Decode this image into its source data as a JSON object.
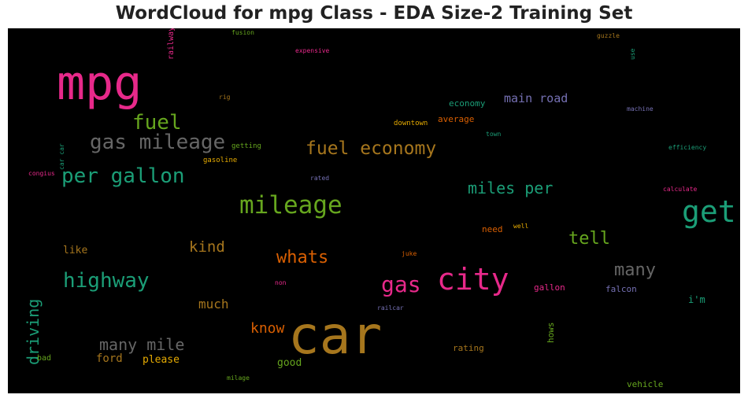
{
  "chart_data": {
    "type": "wordcloud",
    "title": "WordCloud for mpg Class - EDA Size-2 Training Set",
    "background": "#000000",
    "palette": [
      "#e7298a",
      "#1b9e77",
      "#66a61e",
      "#e6ab02",
      "#a6761d",
      "#d95f02",
      "#7570b3",
      "#666666"
    ],
    "words": [
      {
        "text": "mpg",
        "size": 60,
        "color": "#e7298a"
      },
      {
        "text": "car",
        "size": 66,
        "color": "#a6761d"
      },
      {
        "text": "get",
        "size": 38,
        "color": "#1b9e77"
      },
      {
        "text": "city",
        "size": 38,
        "color": "#e7298a"
      },
      {
        "text": "mileage",
        "size": 31,
        "color": "#66a61e"
      },
      {
        "text": "gas mileage",
        "size": 26,
        "color": "#666666"
      },
      {
        "text": "per gallon",
        "size": 26,
        "color": "#1b9e77"
      },
      {
        "text": "highway",
        "size": 26,
        "color": "#1b9e77"
      },
      {
        "text": "gas",
        "size": 28,
        "color": "#e7298a"
      },
      {
        "text": "fuel",
        "size": 26,
        "color": "#66a61e"
      },
      {
        "text": "fuel economy",
        "size": 23,
        "color": "#a6761d"
      },
      {
        "text": "whats",
        "size": 22,
        "color": "#d95f02"
      },
      {
        "text": "miles per",
        "size": 20,
        "color": "#1b9e77"
      },
      {
        "text": "tell",
        "size": 22,
        "color": "#66a61e"
      },
      {
        "text": "many",
        "size": 22,
        "color": "#666666"
      },
      {
        "text": "many mile",
        "size": 20,
        "color": "#666666"
      },
      {
        "text": "driving",
        "size": 20,
        "color": "#1b9e77",
        "rotate": -90
      },
      {
        "text": "kind",
        "size": 19,
        "color": "#a6761d"
      },
      {
        "text": "know",
        "size": 18,
        "color": "#d95f02"
      },
      {
        "text": "much",
        "size": 16,
        "color": "#a6761d"
      },
      {
        "text": "main road",
        "size": 15,
        "color": "#7570b3"
      },
      {
        "text": "ford",
        "size": 14,
        "color": "#a6761d"
      },
      {
        "text": "please",
        "size": 13,
        "color": "#e6ab02"
      },
      {
        "text": "good",
        "size": 13,
        "color": "#66a61e"
      },
      {
        "text": "like",
        "size": 13,
        "color": "#a6761d"
      },
      {
        "text": "i'm",
        "size": 12,
        "color": "#1b9e77"
      },
      {
        "text": "economy",
        "size": 11,
        "color": "#1b9e77"
      },
      {
        "text": "average",
        "size": 11,
        "color": "#d95f02"
      },
      {
        "text": "gallon",
        "size": 11,
        "color": "#e7298a"
      },
      {
        "text": "falcon",
        "size": 11,
        "color": "#7570b3"
      },
      {
        "text": "rating",
        "size": 11,
        "color": "#a6761d"
      },
      {
        "text": "vehicle",
        "size": 11,
        "color": "#66a61e"
      },
      {
        "text": "need",
        "size": 11,
        "color": "#d95f02"
      },
      {
        "text": "hows",
        "size": 11,
        "color": "#66a61e",
        "rotate": -90
      },
      {
        "text": "bad",
        "size": 10,
        "color": "#66a61e"
      },
      {
        "text": "railway",
        "size": 10,
        "color": "#e7298a",
        "rotate": -90
      },
      {
        "text": "downtown",
        "size": 9,
        "color": "#e6ab02"
      },
      {
        "text": "gasoline",
        "size": 9,
        "color": "#e6ab02"
      },
      {
        "text": "getting",
        "size": 9,
        "color": "#66a61e"
      },
      {
        "text": "car car",
        "size": 8,
        "color": "#1b9e77",
        "rotate": -90
      },
      {
        "text": "congius",
        "size": 8,
        "color": "#e7298a"
      },
      {
        "text": "rated",
        "size": 8,
        "color": "#7570b3"
      },
      {
        "text": "fusion",
        "size": 8,
        "color": "#66a61e"
      },
      {
        "text": "expensive",
        "size": 8,
        "color": "#e7298a"
      },
      {
        "text": "guzzle",
        "size": 8,
        "color": "#a6761d"
      },
      {
        "text": "use",
        "size": 8,
        "color": "#1b9e77",
        "rotate": -90
      },
      {
        "text": "rig",
        "size": 8,
        "color": "#a6761d"
      },
      {
        "text": "machine",
        "size": 8,
        "color": "#7570b3"
      },
      {
        "text": "town",
        "size": 8,
        "color": "#1b9e77"
      },
      {
        "text": "efficiency",
        "size": 8,
        "color": "#1b9e77"
      },
      {
        "text": "calculate",
        "size": 8,
        "color": "#e7298a"
      },
      {
        "text": "well",
        "size": 8,
        "color": "#e6ab02"
      },
      {
        "text": "juke",
        "size": 8,
        "color": "#d95f02"
      },
      {
        "text": "non",
        "size": 8,
        "color": "#e7298a"
      },
      {
        "text": "railcar",
        "size": 8,
        "color": "#7570b3"
      },
      {
        "text": "milage",
        "size": 8,
        "color": "#66a61e"
      }
    ]
  }
}
